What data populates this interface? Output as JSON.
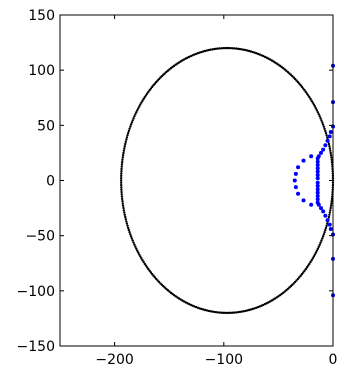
{
  "chart_data": {
    "type": "scatter",
    "title": "",
    "xlabel": "",
    "ylabel": "",
    "xlim": [
      -250,
      0
    ],
    "ylim": [
      -150,
      150
    ],
    "xticks": [
      -200,
      -100,
      0
    ],
    "yticks": [
      -150,
      -100,
      -50,
      0,
      50,
      100,
      150
    ],
    "xtick_labels": [
      "−200",
      "−100",
      "0"
    ],
    "ytick_labels": [
      "−150",
      "−100",
      "−50",
      "0",
      "50",
      "100",
      "150"
    ],
    "grid": false,
    "legend": "none",
    "series": [
      {
        "color": "#000000",
        "marker": "dot",
        "shape": "circle",
        "center": [
          -97,
          0
        ],
        "radius_x": 97,
        "radius_y": 120,
        "point_count": 360
      },
      {
        "color": "#0000ff",
        "marker": "dot",
        "points": [
          [
            0,
            104
          ],
          [
            0,
            71
          ],
          [
            0,
            49
          ],
          [
            0,
            -49
          ],
          [
            0,
            -71
          ],
          [
            0,
            -104
          ],
          [
            -2,
            44
          ],
          [
            -3,
            40
          ],
          [
            -5,
            36
          ],
          [
            -7,
            32
          ],
          [
            -9,
            28
          ],
          [
            -11,
            25
          ],
          [
            -13,
            22
          ],
          [
            -2,
            -44
          ],
          [
            -3,
            -40
          ],
          [
            -5,
            -36
          ],
          [
            -7,
            -32
          ],
          [
            -9,
            -28
          ],
          [
            -11,
            -25
          ],
          [
            -13,
            -22
          ],
          [
            -14,
            20
          ],
          [
            -14,
            17
          ],
          [
            -14,
            14
          ],
          [
            -14,
            11
          ],
          [
            -14,
            8
          ],
          [
            -14,
            5
          ],
          [
            -14,
            2
          ],
          [
            -14,
            -2
          ],
          [
            -14,
            -5
          ],
          [
            -14,
            -8
          ],
          [
            -14,
            -11
          ],
          [
            -14,
            -14
          ],
          [
            -14,
            -17
          ],
          [
            -14,
            -20
          ],
          [
            -20,
            22
          ],
          [
            -27,
            18
          ],
          [
            -32,
            12
          ],
          [
            -34,
            6
          ],
          [
            -35,
            0
          ],
          [
            -34,
            -6
          ],
          [
            -32,
            -12
          ],
          [
            -27,
            -18
          ],
          [
            -20,
            -22
          ]
        ]
      }
    ]
  }
}
